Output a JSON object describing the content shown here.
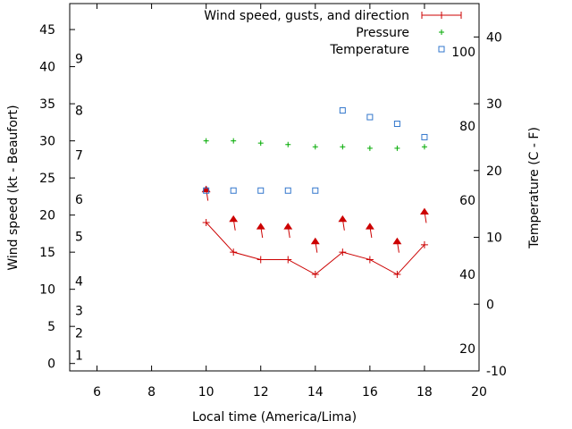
{
  "chart_data": {
    "type": "line",
    "xlabel": "Local time (America/Lima)",
    "ylabel": "Wind speed (kt - Beaufort)",
    "y2label": "Temperature (C - F)",
    "xlim": [
      5,
      20
    ],
    "ylim": [
      -1,
      48.5
    ],
    "y2lim": [
      -10,
      45
    ],
    "x_ticks": [
      6,
      8,
      10,
      12,
      14,
      16,
      18,
      20
    ],
    "y_ticks": [
      0,
      5,
      10,
      15,
      20,
      25,
      30,
      35,
      40,
      45
    ],
    "y2_ticks": [
      -10,
      0,
      10,
      20,
      30,
      40
    ],
    "beaufort_labels": [
      {
        "label": "1",
        "kt": 1.1
      },
      {
        "label": "2",
        "kt": 4.1
      },
      {
        "label": "3",
        "kt": 7.1
      },
      {
        "label": "4",
        "kt": 11.1
      },
      {
        "label": "5",
        "kt": 17.1
      },
      {
        "label": "6",
        "kt": 22.1
      },
      {
        "label": "7",
        "kt": 28.1
      },
      {
        "label": "8",
        "kt": 34.1
      },
      {
        "label": "9",
        "kt": 41.1
      }
    ],
    "fahrenheit_labels": [
      {
        "label": "20",
        "degF": 20
      },
      {
        "label": "40",
        "degF": 40
      },
      {
        "label": "60",
        "degF": 60
      },
      {
        "label": "80",
        "degF": 80
      },
      {
        "label": "100",
        "degF": 100
      }
    ],
    "legend_position": "top-right",
    "grid": false,
    "series": [
      {
        "name": "Wind speed, gusts, and direction",
        "axis": "y",
        "color": "#cc0000",
        "x": [
          10,
          11,
          12,
          13,
          14,
          15,
          16,
          17,
          18
        ],
        "values": [
          19,
          15,
          14,
          14,
          12,
          15,
          14,
          12,
          16
        ],
        "gusts": [
          23.5,
          19.5,
          18.5,
          18.5,
          16.5,
          19.5,
          18.5,
          16.5,
          20.5
        ],
        "direction_arrows": true
      },
      {
        "name": "Pressure",
        "axis": "y",
        "color": "#00aa00",
        "x": [
          10,
          11,
          12,
          13,
          14,
          15,
          16,
          17,
          18
        ],
        "values": [
          30,
          30,
          29.7,
          29.5,
          29.2,
          29.2,
          29,
          29,
          29.2
        ]
      },
      {
        "name": "Temperature",
        "axis": "y2",
        "color": "#3377cc",
        "x": [
          10,
          11,
          12,
          13,
          14,
          15,
          16,
          17,
          18
        ],
        "values": [
          17,
          17,
          17,
          17,
          17,
          29,
          28,
          27,
          25
        ]
      }
    ]
  }
}
